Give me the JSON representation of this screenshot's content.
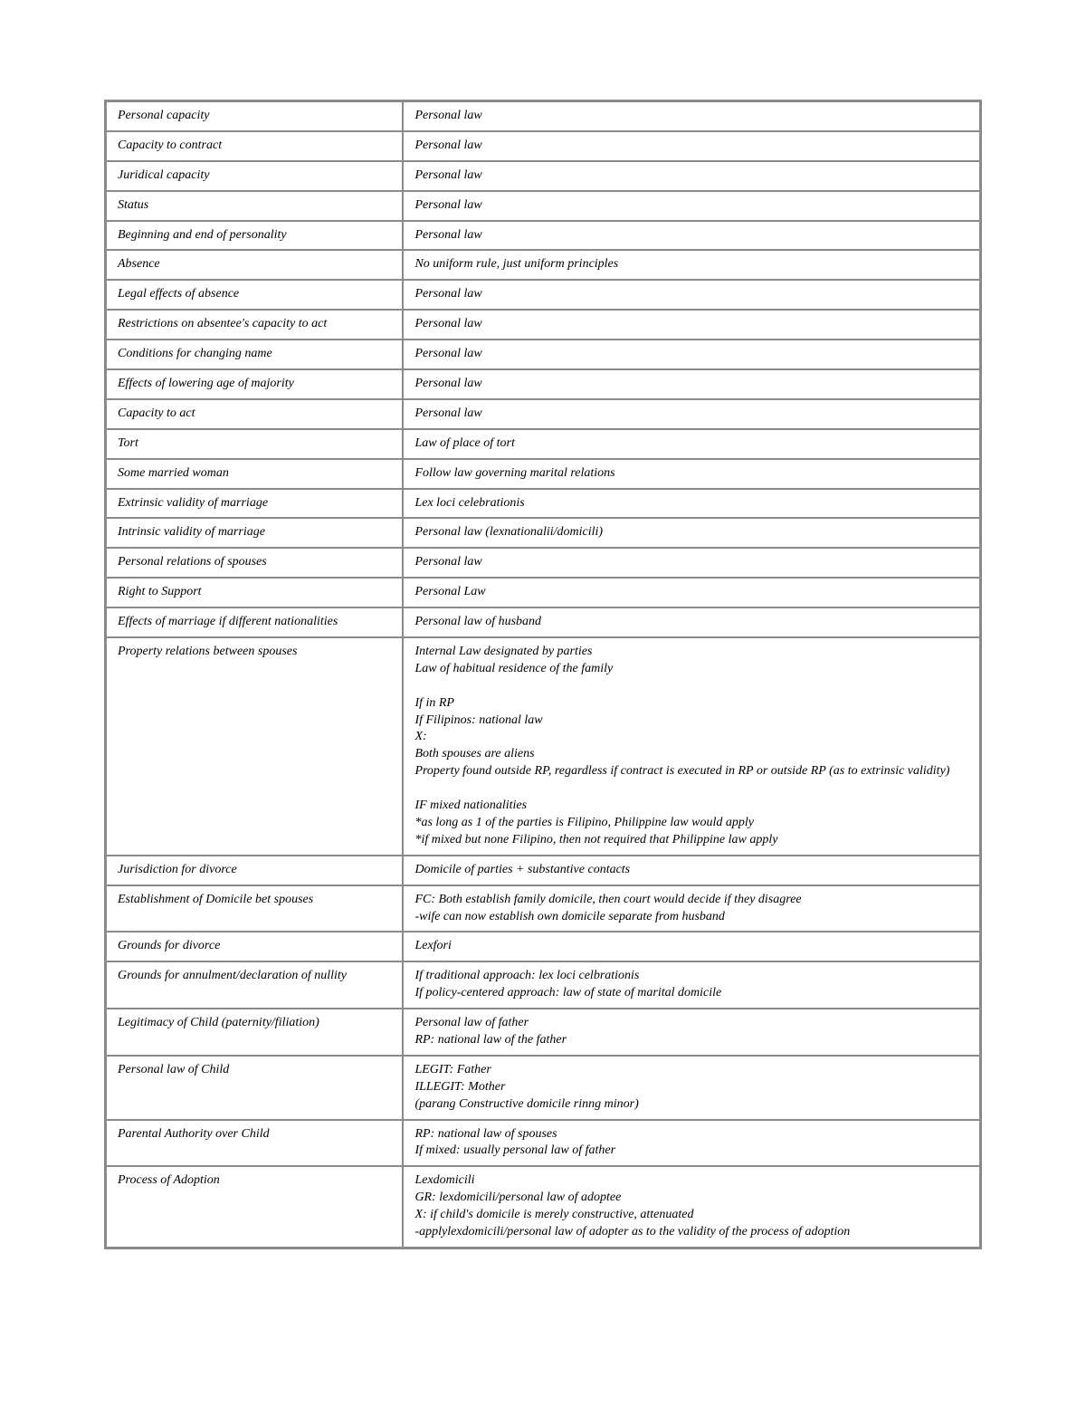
{
  "table": {
    "rows": [
      {
        "left": "Personal capacity",
        "right": "Personal law"
      },
      {
        "left": "Capacity to contract",
        "right": "Personal law"
      },
      {
        "left": "Juridical capacity",
        "right": "Personal law"
      },
      {
        "left": "Status",
        "right": "Personal law"
      },
      {
        "left": "Beginning and end of personality",
        "right": "Personal law"
      },
      {
        "left": "Absence",
        "right": "No uniform rule, just uniform principles"
      },
      {
        "left": "Legal effects of absence",
        "right": "Personal law"
      },
      {
        "left": "Restrictions on absentee's capacity to act",
        "right": "Personal law"
      },
      {
        "left": "Conditions for changing name",
        "right": "Personal law"
      },
      {
        "left": "Effects of lowering age of majority",
        "right": "Personal law"
      },
      {
        "left": "Capacity to act",
        "right": "Personal law"
      },
      {
        "left": "Tort",
        "right": "Law of place of tort"
      },
      {
        "left": "Some married woman",
        "right": "Follow law governing marital relations"
      },
      {
        "left": "Extrinsic validity of marriage",
        "right": "Lex loci celebrationis"
      },
      {
        "left": "Intrinsic validity of marriage",
        "right": "Personal law (lexnationalii/domicili)"
      },
      {
        "left": "Personal relations of spouses",
        "right": "Personal law"
      },
      {
        "left": "Right to Support",
        "right": "Personal Law"
      },
      {
        "left": "Effects of marriage if different nationalities",
        "right": "Personal law of husband"
      },
      {
        "left": "Property relations between spouses",
        "right": "Internal Law designated by parties\nLaw of habitual residence of the family\n\nIf in RP\nIf Filipinos: national law\nX:\nBoth spouses are aliens\nProperty found outside RP, regardless if contract is executed in RP or outside RP (as to extrinsic validity)\n\nIF  mixed nationalities\n*as long as 1 of the parties is Filipino, Philippine law would apply\n*if mixed but none Filipino, then not required that Philippine law apply"
      },
      {
        "left": "Jurisdiction for divorce",
        "right": "Domicile of parties + substantive contacts"
      },
      {
        "left": "Establishment of Domicile bet spouses",
        "right": "FC: Both establish family domicile, then court would decide if they disagree\n-wife can now establish own domicile separate from husband"
      },
      {
        "left": "Grounds for divorce",
        "right": "Lexfori"
      },
      {
        "left": "Grounds for annulment/declaration of nullity",
        "right": "If traditional approach: lex loci celbrationis\nIf policy-centered approach: law of state of marital domicile"
      },
      {
        "left": "Legitimacy of Child (paternity/filiation)",
        "right": "Personal law of father\nRP: national law of the father"
      },
      {
        "left": "Personal law of Child",
        "right": "LEGIT: Father\nILLEGIT: Mother\n(parang Constructive domicile rinng minor)"
      },
      {
        "left": "Parental Authority over Child",
        "right": "RP: national law of spouses\nIf mixed: usually personal law of father"
      },
      {
        "left": "Process of Adoption",
        "right": "Lexdomicili\nGR: lexdomicili/personal law of adoptee\nX: if child's domicile is merely constructive, attenuated\n-applylexdomicili/personal law of adopter as to the validity of the process of adoption"
      }
    ]
  }
}
